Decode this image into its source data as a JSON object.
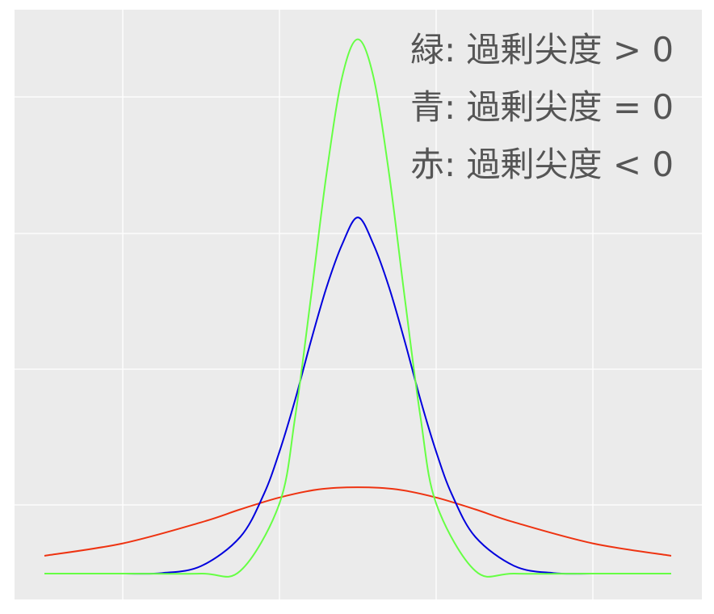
{
  "chart_data": {
    "type": "line",
    "title": "",
    "xlabel": "",
    "ylabel": "",
    "xlim": [
      -4,
      4
    ],
    "ylim": [
      -0.05,
      1.0
    ],
    "grid": true,
    "background": "#EBEBEB",
    "grid_color": "#FFFFFF",
    "x_gridlines": [
      -3,
      -1,
      1,
      3
    ],
    "y_gridlines": [
      0.2,
      0.45,
      0.7,
      0.95
    ],
    "legend_placement": "top-right",
    "annotations": [
      "緑: 過剰尖度 > 0",
      "青: 過剰尖度 = 0",
      "赤: 過剰尖度 < 0"
    ],
    "series": [
      {
        "color": "#66FF44",
        "x": [
          -4,
          -3,
          -2,
          -1.5,
          -1,
          -0.8,
          -0.6,
          -0.4,
          -0.2,
          0,
          0.2,
          0.4,
          0.6,
          0.8,
          1,
          1.5,
          2,
          3,
          4
        ],
        "y": [
          0.0,
          0.0,
          0.0,
          0.005,
          0.13,
          0.29,
          0.51,
          0.74,
          0.92,
          0.99,
          0.92,
          0.74,
          0.51,
          0.29,
          0.13,
          0.005,
          0.0,
          0.0,
          0.0
        ]
      },
      {
        "color": "#0000DD",
        "x": [
          -4,
          -3,
          -2.5,
          -2,
          -1.5,
          -1.2,
          -1,
          -0.8,
          -0.6,
          -0.4,
          -0.2,
          0,
          0.2,
          0.4,
          0.6,
          0.8,
          1,
          1.2,
          1.5,
          2,
          2.5,
          3,
          4
        ],
        "y": [
          0.0,
          0.0,
          0.001,
          0.014,
          0.068,
          0.147,
          0.226,
          0.322,
          0.43,
          0.53,
          0.61,
          0.66,
          0.61,
          0.53,
          0.43,
          0.322,
          0.226,
          0.147,
          0.068,
          0.014,
          0.001,
          0.0,
          0.0
        ]
      },
      {
        "color": "#EE3311",
        "x": [
          -4,
          -3,
          -2,
          -1.5,
          -1,
          -0.5,
          0,
          0.5,
          1,
          1.5,
          2,
          3,
          4
        ],
        "y": [
          0.033,
          0.056,
          0.095,
          0.119,
          0.141,
          0.156,
          0.16,
          0.156,
          0.141,
          0.119,
          0.095,
          0.056,
          0.033
        ]
      }
    ]
  }
}
